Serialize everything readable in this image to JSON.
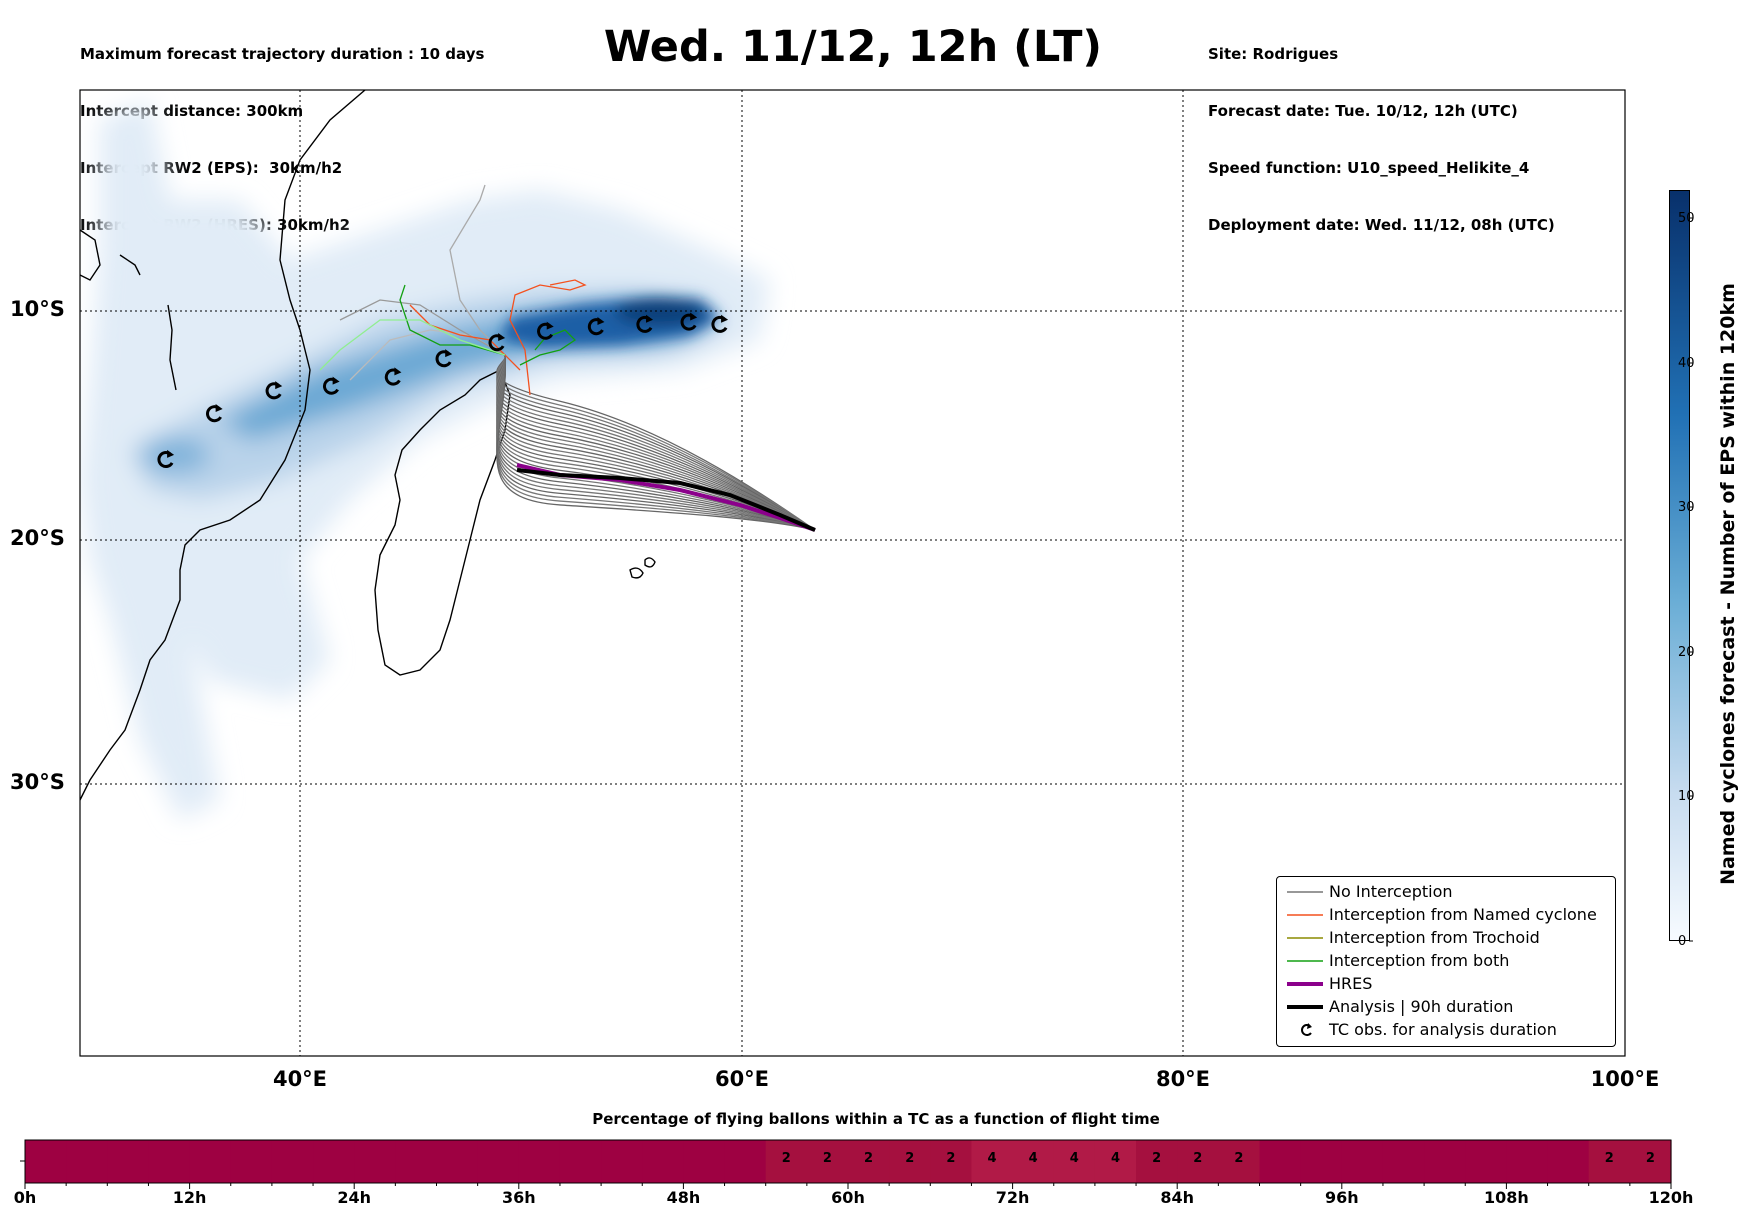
{
  "header": {
    "left": [
      "Maximum forecast trajectory duration : 10 days",
      "Intercept distance: 300km",
      "Intercept RW2 (EPS):  30km/h2",
      "Intercept RW2 (HRES): 30km/h2"
    ],
    "title": "Wed. 11/12, 12h (LT)",
    "right": [
      "Site: Rodrigues",
      "Forecast date: Tue. 10/12, 12h (UTC)",
      "Speed function: U10_speed_Helikite_4",
      "Deployment date: Wed. 11/12, 08h (UTC)"
    ]
  },
  "map": {
    "lon_labels": [
      "40°E",
      "60°E",
      "80°E",
      "100°E"
    ],
    "lat_labels": [
      "10°S",
      "20°S",
      "30°S"
    ],
    "lon_range": [
      30,
      100
    ],
    "lat_range": [
      0,
      -44
    ],
    "tc_obs_lonlat": [
      [
        33.9,
        -16.5
      ],
      [
        36.1,
        -14.5
      ],
      [
        38.8,
        -13.5
      ],
      [
        41.4,
        -13.3
      ],
      [
        44.2,
        -12.9
      ],
      [
        46.5,
        -12.1
      ],
      [
        48.9,
        -11.4
      ],
      [
        51.1,
        -10.9
      ],
      [
        53.4,
        -10.7
      ],
      [
        55.6,
        -10.6
      ],
      [
        57.6,
        -10.5
      ],
      [
        59.0,
        -10.6
      ]
    ],
    "colors": {
      "no_interception": "#777777",
      "named_cyclone": "#f4511e",
      "trochoid": "#8b8b00",
      "both": "#12a012",
      "hres": "#8b008b",
      "analysis": "#000000"
    }
  },
  "colorbar": {
    "label": "Named cyclones forecast - Number of EPS within 120km",
    "ticks": [
      "0",
      "10",
      "20",
      "30",
      "40",
      "50"
    ],
    "range": [
      0,
      52
    ]
  },
  "legend": {
    "items": [
      {
        "label": "No Interception",
        "style": "thin",
        "color": "#777777"
      },
      {
        "label": "Interception from Named cyclone",
        "style": "thin",
        "color": "#f4511e"
      },
      {
        "label": "Interception from Trochoid",
        "style": "thin",
        "color": "#8b8b00"
      },
      {
        "label": "Interception from both",
        "style": "thin",
        "color": "#12a012"
      },
      {
        "label": "HRES",
        "style": "thick",
        "color": "#8b008b"
      },
      {
        "label": "Analysis | 90h duration",
        "style": "thick",
        "color": "#000000"
      },
      {
        "label": "TC obs. for analysis duration",
        "style": "tc-symbol",
        "color": "#000000"
      }
    ]
  },
  "percentage_bar": {
    "title": "Percentage of flying ballons within a TC as a function of flight time",
    "time_labels": [
      "0h",
      "12h",
      "24h",
      "36h",
      "48h",
      "60h",
      "72h",
      "84h",
      "96h",
      "108h",
      "120h"
    ],
    "values": [
      0,
      0,
      0,
      0,
      0,
      0,
      0,
      0,
      0,
      0,
      0,
      0,
      0,
      0,
      0,
      0,
      0,
      0,
      2,
      2,
      2,
      2,
      2,
      4,
      4,
      4,
      4,
      2,
      2,
      2,
      0,
      0,
      0,
      0,
      0,
      0,
      0,
      0,
      2,
      2
    ],
    "max_hours": 120,
    "step_hours": 3
  }
}
